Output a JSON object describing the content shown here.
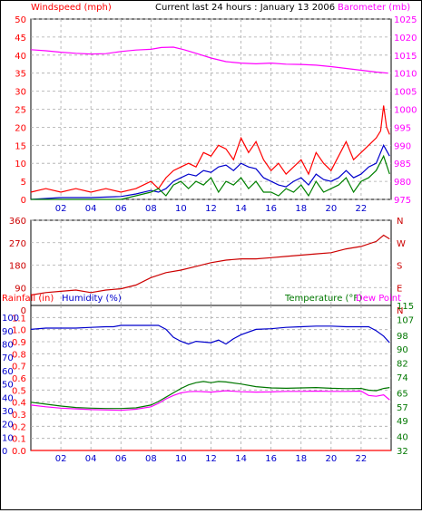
{
  "header": {
    "left_label": "Windspeed (mph)",
    "center_label": "Current last 24 hours : January 13 2006",
    "right_label": "Barometer (mb)"
  },
  "colors": {
    "windspeed": "#ff0000",
    "barometer": "#ff00ff",
    "wind_direction": "#cc0000",
    "rainfall": "#ff0000",
    "humidity": "#0000cc",
    "temperature": "#007700",
    "dew_point": "#ff00ff",
    "gust": "#ff0000",
    "avg_speed": "#0000cc",
    "low_speed": "#008000"
  },
  "chart_data": [
    {
      "type": "line",
      "left_axis": {
        "label": "Windspeed (mph)",
        "ticks": [
          0,
          5,
          10,
          15,
          20,
          25,
          30,
          35,
          40,
          45,
          50
        ],
        "range": [
          0,
          50
        ]
      },
      "right_axis": {
        "label": "Barometer (mb)",
        "ticks": [
          975,
          980,
          985,
          990,
          995,
          1000,
          1005,
          1010,
          1015,
          1020,
          1025
        ],
        "range": [
          975,
          1025
        ]
      },
      "x_ticks": [
        "02",
        "04",
        "06",
        "08",
        "10",
        "12",
        "14",
        "16",
        "18",
        "20",
        "22"
      ],
      "x_range": [
        0,
        24
      ],
      "grid": true,
      "series": [
        {
          "axis": "right",
          "color_key": "barometer",
          "x": [
            0,
            1,
            2,
            3,
            4,
            5,
            6,
            7,
            8,
            8.7,
            9.5,
            10.2,
            11,
            12,
            13,
            14,
            15,
            16,
            17,
            18,
            19,
            20,
            21,
            22,
            23,
            23.8
          ],
          "values": [
            1016.5,
            1016.2,
            1015.8,
            1015.5,
            1015.3,
            1015.4,
            1016,
            1016.4,
            1016.6,
            1017.1,
            1017.2,
            1016.5,
            1015.5,
            1014.2,
            1013.2,
            1012.8,
            1012.6,
            1012.8,
            1012.5,
            1012.4,
            1012.2,
            1011.8,
            1011.3,
            1010.8,
            1010.3,
            1010
          ]
        },
        {
          "axis": "left",
          "color_key": "gust",
          "x": [
            0,
            1,
            2,
            3,
            4,
            5,
            6,
            7,
            7.5,
            8,
            8.5,
            9,
            9.5,
            10,
            10.5,
            11,
            11.5,
            12,
            12.5,
            13,
            13.5,
            14,
            14.5,
            15,
            15.5,
            16,
            16.5,
            17,
            17.5,
            18,
            18.5,
            19,
            19.5,
            20,
            20.5,
            21,
            21.5,
            22,
            22.5,
            23,
            23.3,
            23.5,
            23.7,
            23.9
          ],
          "values": [
            2,
            3,
            2,
            3,
            2,
            3,
            2,
            3,
            4,
            5,
            3,
            6,
            8,
            9,
            10,
            9,
            13,
            12,
            15,
            14,
            11,
            17,
            13,
            16,
            11,
            8,
            10,
            7,
            9,
            11,
            7,
            13,
            10,
            8,
            12,
            16,
            11,
            13,
            15,
            17,
            19,
            26,
            20,
            18
          ]
        },
        {
          "axis": "left",
          "color_key": "avg_speed",
          "x": [
            0,
            2,
            4,
            6,
            7,
            8,
            8.5,
            9,
            9.5,
            10,
            10.5,
            11,
            11.5,
            12,
            12.5,
            13,
            13.5,
            14,
            14.5,
            15,
            15.5,
            16,
            16.5,
            17,
            17.5,
            18,
            18.5,
            19,
            19.5,
            20,
            20.5,
            21,
            21.5,
            22,
            22.5,
            23,
            23.5,
            23.9
          ],
          "values": [
            0,
            0.5,
            0.5,
            0.8,
            1.5,
            2.5,
            2,
            3,
            5,
            6,
            7,
            6.5,
            8,
            7.5,
            9,
            9.5,
            8,
            10,
            9,
            8.5,
            6,
            5,
            4,
            3.5,
            5,
            6,
            4,
            7,
            5.5,
            5,
            6,
            8,
            6,
            7,
            9,
            10,
            15,
            12
          ]
        },
        {
          "axis": "left",
          "color_key": "low_speed",
          "x": [
            0,
            2,
            4,
            6,
            7,
            8,
            8.5,
            9,
            9.5,
            10,
            10.5,
            11,
            11.5,
            12,
            12.5,
            13,
            13.5,
            14,
            14.5,
            15,
            15.5,
            16,
            16.5,
            17,
            17.5,
            18,
            18.5,
            19,
            19.5,
            20,
            20.5,
            21,
            21.5,
            22,
            22.5,
            23,
            23.5,
            23.9
          ],
          "values": [
            0,
            0,
            0,
            0,
            1,
            2,
            3,
            1,
            4,
            5,
            3,
            5,
            4,
            6,
            2,
            5,
            4,
            6,
            3,
            5,
            2,
            2,
            1,
            3,
            2,
            4,
            1,
            5,
            2,
            3,
            4,
            6,
            2,
            5,
            6,
            8,
            12,
            7
          ]
        }
      ]
    },
    {
      "type": "line",
      "left_axis": {
        "ticks": [
          0,
          90,
          180,
          270,
          360
        ],
        "range": [
          0,
          360
        ]
      },
      "right_axis": {
        "ticks": [
          "N",
          "W",
          "S",
          "E",
          "N"
        ]
      },
      "x_range": [
        0,
        24
      ],
      "grid": true,
      "series": [
        {
          "color_key": "wind_direction",
          "x": [
            0,
            1,
            2,
            3,
            4,
            5,
            6,
            7,
            8,
            9,
            10,
            11,
            12,
            13,
            14,
            15,
            16,
            17,
            18,
            19,
            20,
            21,
            22,
            23,
            23.5,
            23.9
          ],
          "values": [
            60,
            70,
            75,
            80,
            70,
            80,
            85,
            100,
            130,
            150,
            160,
            175,
            190,
            200,
            205,
            205,
            210,
            215,
            220,
            225,
            230,
            245,
            255,
            275,
            300,
            285
          ]
        }
      ]
    },
    {
      "type": "line",
      "left_axis": {
        "label": "Rainfall (in)",
        "ticks": [
          0.0,
          0.1,
          0.2,
          0.3,
          0.4,
          0.5,
          0.6,
          0.7,
          0.8,
          0.9,
          1.0,
          1.1
        ],
        "tick_labels": [
          "0.0",
          "0.1",
          "0.2",
          "0.3",
          "0.4",
          "0.5",
          "0.6",
          "0.7",
          "0.8",
          "0.9",
          "1.0",
          "1.1"
        ],
        "range": [
          0,
          1.2
        ]
      },
      "left_axis_2": {
        "label": "Humidity (%)",
        "ticks": [
          0,
          10,
          20,
          30,
          40,
          50,
          60,
          70,
          80,
          90,
          100
        ],
        "range": [
          0,
          109
        ]
      },
      "right_axis": {
        "label": "Temperature (°F)",
        "ticks": [
          32,
          40,
          49,
          57,
          65,
          74,
          82,
          90,
          98,
          107,
          115
        ],
        "range": [
          32,
          115
        ]
      },
      "right_label_2": "Dew Point",
      "x_ticks": [
        "02",
        "04",
        "06",
        "08",
        "10",
        "12",
        "14",
        "16",
        "18",
        "20",
        "22"
      ],
      "x_range": [
        0,
        24
      ],
      "grid": true,
      "series": [
        {
          "color_key": "humidity",
          "axis": "humidity",
          "x": [
            0,
            1,
            2,
            3,
            4,
            5,
            5.5,
            6,
            7,
            8,
            8.5,
            9,
            9.5,
            10,
            10.5,
            11,
            12,
            12.5,
            13,
            13.5,
            14,
            15,
            16,
            17,
            18,
            19,
            20,
            21,
            22,
            22.5,
            23,
            23.5,
            23.9
          ],
          "values": [
            91,
            92,
            92,
            92,
            92.5,
            93,
            93,
            94,
            94,
            94,
            94,
            91,
            85,
            82,
            80,
            82,
            81,
            83,
            80,
            84,
            87,
            91,
            91.5,
            92.5,
            93,
            93.5,
            93.5,
            93,
            93,
            93,
            90,
            86,
            81
          ]
        },
        {
          "color_key": "temperature",
          "axis": "temperature",
          "x": [
            0,
            1,
            2,
            3,
            4,
            5,
            6,
            7,
            8,
            8.5,
            9,
            9.5,
            10,
            10.5,
            11,
            11.5,
            12,
            12.5,
            13,
            14,
            15,
            16,
            17,
            18,
            19,
            20,
            21,
            22,
            22.5,
            23,
            23.5,
            23.9
          ],
          "values": [
            59.6,
            58.5,
            57.4,
            56.6,
            56.2,
            56,
            56,
            56.4,
            58,
            60,
            62.5,
            65,
            67.5,
            69.5,
            70.8,
            71.5,
            70.8,
            71.5,
            71.2,
            70,
            68.5,
            67.8,
            67.6,
            67.8,
            68,
            67.6,
            67.4,
            67.5,
            66.5,
            66.2,
            67.5,
            68
          ]
        },
        {
          "color_key": "dew_point",
          "axis": "temperature",
          "x": [
            0,
            1,
            2,
            3,
            4,
            5,
            6,
            7,
            8,
            8.5,
            9,
            9.5,
            10,
            10.5,
            11,
            12,
            13,
            14,
            15,
            16,
            17,
            18,
            19,
            20,
            21,
            22,
            22.5,
            23,
            23.5,
            23.9
          ],
          "values": [
            58,
            57,
            56.2,
            55.8,
            55.4,
            55.2,
            55,
            55.6,
            57,
            59,
            61.5,
            63.5,
            65,
            65.6,
            65.8,
            65.4,
            66.2,
            65.6,
            65.4,
            65.5,
            65.8,
            65.8,
            66,
            65.8,
            65.8,
            66,
            63.5,
            63,
            63.8,
            61
          ]
        },
        {
          "color_key": "rainfall",
          "axis": "rainfall",
          "x": [
            0,
            24
          ],
          "values": [
            0,
            0
          ]
        }
      ]
    }
  ]
}
